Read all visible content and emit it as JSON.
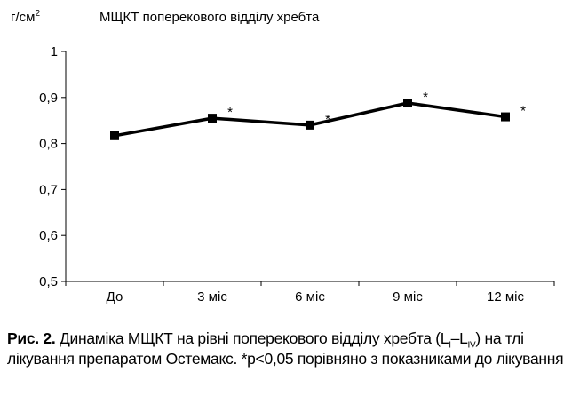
{
  "chart_data": {
    "type": "line",
    "title": "МЩКТ поперекового відділу хребта",
    "ylabel_main": "г/см",
    "ylabel_sup": "2",
    "xlabel": "",
    "categories": [
      "До",
      "3 міс",
      "6 міс",
      "9 міс",
      "12 міс"
    ],
    "series": [
      {
        "values": [
          0.817,
          0.855,
          0.84,
          0.888,
          0.858
        ],
        "significance": [
          "",
          "*",
          "*",
          "*",
          "*"
        ]
      }
    ],
    "ylim": [
      0.5,
      1.0
    ],
    "yticks": [
      0.5,
      0.6,
      0.7,
      0.8,
      0.9,
      1.0
    ],
    "ytick_labels": [
      "0,5",
      "0,6",
      "0,7",
      "0,8",
      "0,9",
      "1"
    ],
    "grid": false,
    "line_color": "#000000",
    "marker": "square"
  },
  "caption": {
    "label": "Рис. 2.",
    "text_before_sub": " Динаміка МЩКТ на рівні поперекового відділу хребта (L",
    "sub1": "I",
    "dash": "–L",
    "sub2": "IV",
    "text_after_sub": ") на тлі лікування препаратом Остемакс. *р<0,05 порівняно з показниками до лікування"
  }
}
